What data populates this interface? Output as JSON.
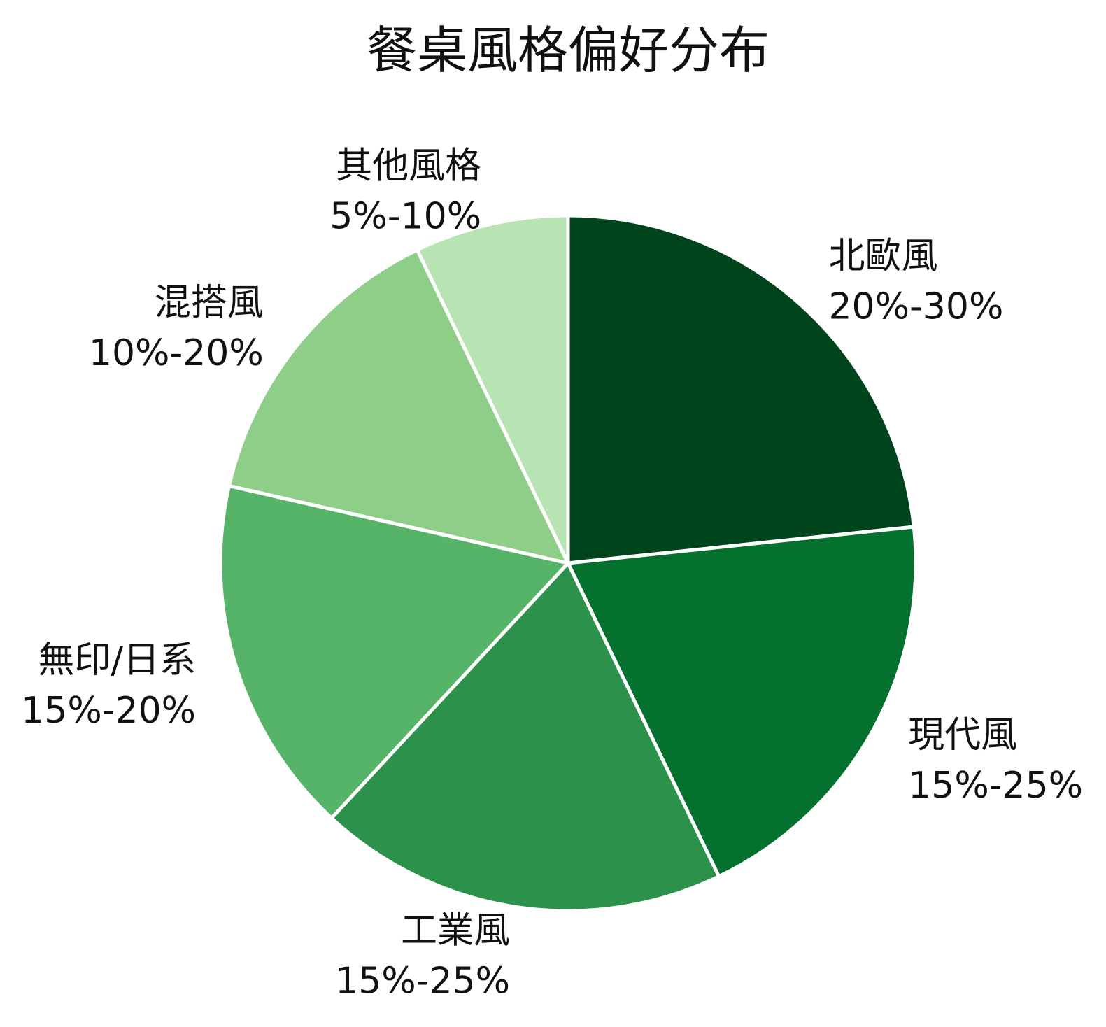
{
  "chart_data": {
    "type": "pie",
    "title": "餐桌風格偏好分布",
    "slices": [
      {
        "name": "北歐風",
        "range": "20%-30%",
        "value": 24.5,
        "color": "#00441b"
      },
      {
        "name": "現代風",
        "range": "15%-25%",
        "value": 20.5,
        "color": "#05712f"
      },
      {
        "name": "工業風",
        "range": "15%-25%",
        "value": 20.0,
        "color": "#2c924b"
      },
      {
        "name": "無印/日系",
        "range": "15%-20%",
        "value": 17.5,
        "color": "#56b469"
      },
      {
        "name": "混搭風",
        "range": "10%-20%",
        "value": 15.0,
        "color": "#8fce88"
      },
      {
        "name": "其他風格",
        "range": "5%-10%",
        "value": 7.5,
        "color": "#b8e3b2"
      }
    ]
  }
}
